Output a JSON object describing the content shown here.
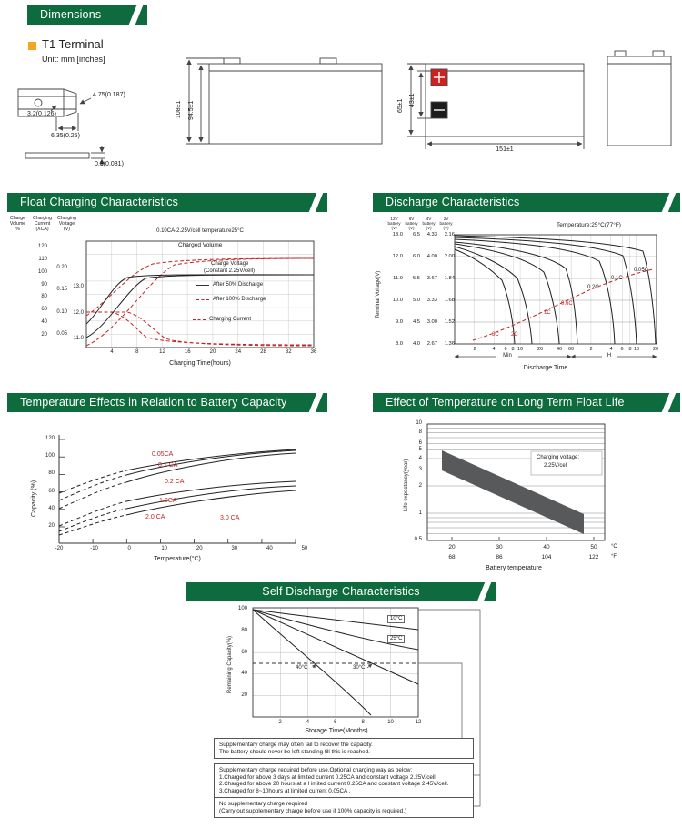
{
  "colors": {
    "banner_green": "#0D6B3D",
    "accent_orange": "#F5A623",
    "curve_red": "#c22222",
    "curve_black": "#222222",
    "band_gray": "#58595B"
  },
  "dimensions": {
    "banner": "Dimensions",
    "terminal_title": "T1 Terminal",
    "unit": "Unit: mm [inches]",
    "terminal_dims": {
      "d1": "4.75(0.187)",
      "d2": "3.2(0.126)",
      "d3": "6.35(0.25)",
      "d4": "0.8(0.031)"
    },
    "side_view": {
      "overall_height": "108±1",
      "case_height": "94.5±1"
    },
    "front_view": {
      "height": "65±1",
      "terminal_height": "43±1",
      "length": "151±1",
      "plus": "+",
      "minus": "−"
    }
  },
  "float_charging": {
    "banner": "Float Charging Characteristics",
    "title": "0.10CA-2.25V/cell  temperature25°C",
    "axis_headers": [
      {
        "l1": "Charge",
        "l2": "Volume",
        "u": "%"
      },
      {
        "l1": "Charging",
        "l2": "Current",
        "u": "(XCA)"
      },
      {
        "l1": "Charging",
        "l2": "Voltage",
        "u": "(V)"
      }
    ],
    "pct_ticks": [
      "120",
      "110",
      "100",
      "90",
      "80",
      "60",
      "40",
      "20"
    ],
    "xca_ticks": [
      "0.20",
      "0.15",
      "0.10",
      "0.05"
    ],
    "v_ticks": [
      "13.0",
      "12.0",
      "11.0"
    ],
    "x_ticks": [
      "4",
      "8",
      "12",
      "16",
      "20",
      "24",
      "28",
      "32",
      "36"
    ],
    "x_label": "Charging Time(hours)",
    "legend": {
      "charged_volume": "Charged Volume",
      "charge_voltage_1": "Charge Voltage",
      "charge_voltage_2": "(Constant 2.25V/cell)",
      "after_50": "After 50% Discharge",
      "after_100": "After 100% Discharge",
      "charging_current": "Charging Current"
    }
  },
  "discharge": {
    "banner": "Discharge Characteristics",
    "temperature_note": "Temperature:25°C(77°F)",
    "y_axis_label": "Terminal Voltage(V)",
    "col_headers": [
      {
        "v": "12V",
        "s": "battery",
        "u": "(V)"
      },
      {
        "v": "6V",
        "s": "battery",
        "u": "(V)"
      },
      {
        "v": "4V",
        "s": "battery",
        "u": "(V)"
      },
      {
        "v": "2V",
        "s": "battery",
        "u": "(V)"
      }
    ],
    "voltage_rows": [
      {
        "v12": "13.0",
        "v6": "6.5",
        "v4": "4.33",
        "v2": "2.16"
      },
      {
        "v12": "12.0",
        "v6": "6.0",
        "v4": "4.00",
        "v2": "2.00"
      },
      {
        "v12": "11.0",
        "v6": "5.5",
        "v4": "3.67",
        "v2": "1.84"
      },
      {
        "v12": "10.0",
        "v6": "5.0",
        "v4": "3.33",
        "v2": "1.68"
      },
      {
        "v12": "9.0",
        "v6": "4.5",
        "v4": "3.00",
        "v2": "1.52"
      },
      {
        "v12": "8.0",
        "v6": "4.0",
        "v4": "2.67",
        "v2": "1.36"
      }
    ],
    "x_ticks_min": [
      "2",
      "4",
      "6",
      "8",
      "10",
      "20",
      "40",
      "60"
    ],
    "x_ticks_h": [
      "2",
      "4",
      "6",
      "8",
      "10",
      "20"
    ],
    "min_label": "Min",
    "h_label": "H",
    "x_label": "Discharge Time",
    "curve_labels": [
      "3C",
      "2C",
      "1C",
      "0.6C",
      "0.2C",
      "0.1C",
      "0.05C"
    ]
  },
  "temp_capacity": {
    "banner": "Temperature Effects in Relation to Battery Capacity",
    "y_label": "Capacity  (%)",
    "y_ticks": [
      "120",
      "100",
      "80",
      "60",
      "40",
      "20"
    ],
    "x_ticks": [
      "-20",
      "-10",
      "0",
      "10",
      "20",
      "30",
      "40",
      "50"
    ],
    "x_label": "Temperature(°C)",
    "curve_labels": [
      "0.05CA",
      "0.1 CA",
      "0.2 CA",
      "1.0CA",
      "2.0 CA",
      "3.0 CA"
    ]
  },
  "float_life": {
    "banner": "Effect of Temperature on Long Term Float Life",
    "y_label": "Life expectancy(year)",
    "y_ticks": [
      "10",
      "8",
      "6",
      "5",
      "4",
      "3",
      "2",
      "1",
      "0.5"
    ],
    "x_ticks_c": [
      "20",
      "30",
      "40",
      "50"
    ],
    "x_ticks_f": [
      "68",
      "86",
      "104",
      "122"
    ],
    "unit_c": "°C",
    "unit_f": "°F",
    "x_label": "Battery  temperature",
    "note_1": "Charging voltage:",
    "note_2": "2.25V/cell"
  },
  "self_discharge": {
    "banner": "Self Discharge  Characteristics",
    "y_label": "Remaining Capacity(%)",
    "y_ticks": [
      "100",
      "80",
      "60",
      "40",
      "20"
    ],
    "x_ticks": [
      "2",
      "4",
      "6",
      "8",
      "10",
      "12"
    ],
    "x_label": "Storage Time(Months)",
    "curve_labels": {
      "c10": "10°C",
      "c25": "25°C",
      "c40": "40°C",
      "c30": "30°C"
    },
    "notes": [
      [
        "Supplementary charge may often  fail to recover  the capacity.",
        "The battery should never be left  standing till this is reached."
      ],
      [
        "Supplementary charge required before use.Optional charging way as below:",
        "1.Charged for above 3 days at  limited  current  0.25CA and constant voltage 2.25V/cell.",
        "2.Charged for above 20 hours at a l imited  current  0.25CA and constant voltage 2.45V/cell.",
        "3.Charged for 8~10hours at limited current 0.05CA ."
      ],
      [
        "No supplementary charge required",
        "(Carry out supplementary charge before  use if 100% capacity is required.)"
      ]
    ]
  },
  "chart_data": [
    {
      "id": "float_charging",
      "type": "line",
      "title": "0.10CA-2.25V/cell temperature25°C",
      "xlabel": "Charging Time(hours)",
      "x_range": [
        0,
        36
      ],
      "x_ticks": [
        4,
        8,
        12,
        16,
        20,
        24,
        28,
        32,
        36
      ],
      "axes": [
        {
          "label": "Charge Volume",
          "unit": "%",
          "ticks": [
            120,
            110,
            100,
            90,
            80,
            60,
            40,
            20
          ]
        },
        {
          "label": "Charging Current",
          "unit": "XCA",
          "ticks": [
            0.2,
            0.15,
            0.1,
            0.05
          ]
        },
        {
          "label": "Charging Voltage",
          "unit": "V",
          "ticks": [
            13.0,
            12.0,
            11.0
          ]
        }
      ],
      "series": [
        {
          "name": "Charged Volume (after 50% discharge)",
          "axis": "%",
          "style": "red-dashed",
          "x": [
            0,
            4,
            8,
            12,
            16,
            24,
            36
          ],
          "values": [
            50,
            78,
            96,
            104,
            108,
            110,
            110
          ]
        },
        {
          "name": "Charged Volume (after 100% discharge)",
          "axis": "%",
          "style": "red-dashed",
          "x": [
            0,
            4,
            8,
            12,
            16,
            24,
            36
          ],
          "values": [
            0,
            52,
            84,
            98,
            105,
            109,
            110
          ]
        },
        {
          "name": "Charge Voltage after 50% discharge (constant 2.25V/cell)",
          "axis": "V",
          "style": "black-solid",
          "x": [
            0,
            2,
            6,
            10,
            36
          ],
          "values": [
            11.9,
            12.6,
            13.4,
            13.5,
            13.5
          ]
        },
        {
          "name": "Charge Voltage after 100% discharge (constant 2.25V/cell)",
          "axis": "V",
          "style": "black-solid",
          "x": [
            0,
            3,
            8,
            12,
            36
          ],
          "values": [
            11.3,
            12.1,
            13.2,
            13.5,
            13.5
          ]
        },
        {
          "name": "Charging Current",
          "axis": "XCA",
          "style": "red-dashed",
          "x": [
            0,
            4,
            8,
            12,
            20,
            36
          ],
          "values": [
            0.1,
            0.1,
            0.06,
            0.02,
            0.01,
            0.01
          ]
        }
      ]
    },
    {
      "id": "discharge",
      "type": "line",
      "xlabel": "Discharge Time",
      "ylabel": "Terminal Voltage(V)",
      "x_scale": "log",
      "x_units": [
        "Min",
        "H"
      ],
      "temperature": "25°C(77°F)",
      "y_ticks_by_battery": {
        "12V": [
          13.0,
          12.0,
          11.0,
          10.0,
          9.0,
          8.0
        ],
        "6V": [
          6.5,
          6.0,
          5.5,
          5.0,
          4.5,
          4.0
        ],
        "4V": [
          4.33,
          4.0,
          3.67,
          3.33,
          3.0,
          2.67
        ],
        "2V": [
          2.16,
          2.0,
          1.84,
          1.68,
          1.52,
          1.36
        ]
      },
      "x_ticks": {
        "min": [
          2,
          4,
          6,
          8,
          10,
          20,
          40,
          60
        ],
        "h": [
          2,
          4,
          6,
          8,
          10,
          20
        ]
      },
      "curves": [
        {
          "rate": "3C",
          "approx_end_min": 9
        },
        {
          "rate": "2C",
          "approx_end_min": 16
        },
        {
          "rate": "1C",
          "approx_end_min": 40
        },
        {
          "rate": "0.6C",
          "approx_end_min": 75
        },
        {
          "rate": "0.2C",
          "approx_end_h": 4.5
        },
        {
          "rate": "0.1C",
          "approx_end_h": 10
        },
        {
          "rate": "0.05C",
          "approx_end_h": 20
        }
      ]
    },
    {
      "id": "temp_capacity",
      "type": "line",
      "xlabel": "Temperature(°C)",
      "ylabel": "Capacity (%)",
      "x": [
        -20,
        -10,
        0,
        10,
        20,
        30,
        40,
        50
      ],
      "ylim": [
        0,
        120
      ],
      "series": [
        {
          "name": "0.05CA",
          "values": [
            58,
            72,
            84,
            93,
            100,
            104,
            107,
            108
          ]
        },
        {
          "name": "0.1CA",
          "values": [
            49,
            65,
            79,
            89,
            97,
            102,
            105,
            107
          ]
        },
        {
          "name": "0.2CA",
          "values": [
            40,
            56,
            71,
            83,
            92,
            98,
            102,
            104
          ]
        },
        {
          "name": "1.0CA",
          "values": [
            20,
            35,
            48,
            57,
            63,
            67,
            70,
            72
          ]
        },
        {
          "name": "2.0CA",
          "values": [
            14,
            28,
            40,
            48,
            56,
            61,
            64,
            66
          ]
        },
        {
          "name": "3.0CA",
          "values": [
            9,
            22,
            33,
            42,
            48,
            54,
            58,
            61
          ]
        }
      ]
    },
    {
      "id": "float_life",
      "type": "band",
      "xlabel": "Battery temperature",
      "ylabel": "Life expectancy(year)",
      "yscale": "log",
      "ylim": [
        0.5,
        10
      ],
      "x_ticks_c": [
        20,
        30,
        40,
        50
      ],
      "x_ticks_f": [
        68,
        86,
        104,
        122
      ],
      "note": "Charging voltage: 2.25V/cell",
      "band": {
        "temp_c": [
          20,
          30,
          40,
          47
        ],
        "upper_years": [
          4.5,
          2.6,
          1.5,
          1.0
        ],
        "lower_years": [
          2.7,
          1.55,
          0.9,
          0.59
        ]
      }
    },
    {
      "id": "self_discharge",
      "type": "line",
      "xlabel": "Storage Time(Months)",
      "ylabel": "Remaining Capacity(%)",
      "x": [
        0,
        2,
        4,
        6,
        8,
        10,
        12
      ],
      "threshold_pct": 50,
      "series": [
        {
          "name": "10°C",
          "values": [
            100,
            97,
            94,
            91,
            88,
            85,
            81
          ]
        },
        {
          "name": "25°C",
          "values": [
            100,
            94,
            87,
            81,
            74,
            68,
            63
          ]
        },
        {
          "name": "30°C",
          "values": [
            100,
            89,
            77,
            66,
            54,
            42,
            31
          ]
        },
        {
          "name": "40°C",
          "values": [
            100,
            80,
            61,
            42,
            23,
            5,
            0
          ]
        }
      ]
    }
  ]
}
